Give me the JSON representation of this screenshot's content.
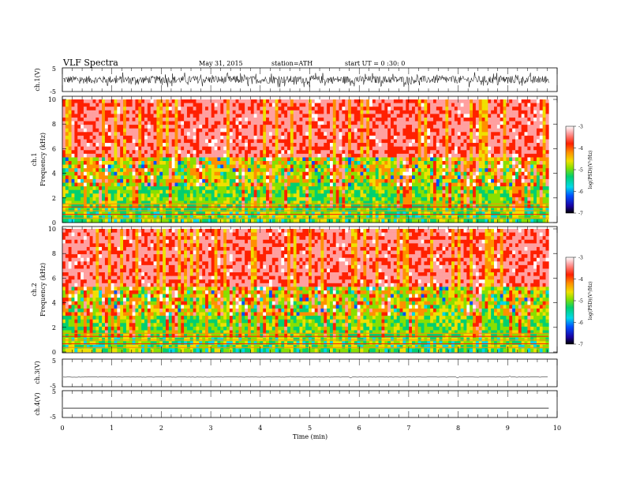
{
  "header": {
    "title": "VLF Spectra",
    "date": "May 31, 2015",
    "station": "station=ATH",
    "start": "start UT =   0 :30: 0"
  },
  "colorbar": {
    "label": "log(PSD)(V^2/Hz)",
    "ticks": [
      "-3",
      "-4",
      "-5",
      "-6",
      "-7"
    ],
    "colors": [
      "#000000",
      "#1a00a0",
      "#0050ff",
      "#00d8e8",
      "#00d070",
      "#88e000",
      "#f0e000",
      "#ff9000",
      "#ff2000",
      "#ffa0a0",
      "#ffffff"
    ]
  },
  "chart_data": [
    {
      "type": "line",
      "panel": "ch1-waveform",
      "ylabel": "ch.1(V)",
      "yticks": [
        "5",
        "-5"
      ],
      "ylim": [
        -5,
        5
      ],
      "xlim": [
        0,
        9.83
      ],
      "description_of_signal": "noisy waveform, amplitude approx ±3 V",
      "series": [
        {
          "values_summary": {
            "min": -3.3,
            "max": 3.0,
            "mean": 0
          }
        }
      ]
    },
    {
      "type": "heatmap",
      "panel": "ch1-spectrogram",
      "ylabel": "ch.1\nFrequency (kHz)",
      "yticks": [
        "0",
        "2",
        "4",
        "6",
        "8",
        "10"
      ],
      "ylim": [
        0,
        10
      ],
      "xlim": [
        0,
        9.83
      ],
      "value_range": [
        -7,
        -3
      ]
    },
    {
      "type": "heatmap",
      "panel": "ch2-spectrogram",
      "ylabel": "ch.2\nFrequency (kHz)",
      "yticks": [
        "0",
        "2",
        "4",
        "6",
        "8",
        "10"
      ],
      "ylim": [
        0,
        10
      ],
      "xlim": [
        0,
        9.83
      ],
      "value_range": [
        -7,
        -3
      ]
    },
    {
      "type": "line",
      "panel": "ch3-waveform",
      "ylabel": "ch.3(V)",
      "yticks": [
        "5",
        "-5"
      ],
      "ylim": [
        -5,
        5
      ],
      "xlim": [
        0,
        9.83
      ],
      "series": [
        {
          "values_summary": {
            "level": -1.5
          }
        }
      ]
    },
    {
      "type": "line",
      "panel": "ch4-waveform",
      "ylabel": "ch.4(V)",
      "yticks": [
        "5",
        "-5"
      ],
      "ylim": [
        -5,
        5
      ],
      "xlim": [
        0,
        9.83
      ],
      "series": [
        {
          "values_summary": {
            "level": -1.5
          }
        }
      ]
    }
  ],
  "xaxis": {
    "label": "Time (min)",
    "ticks": [
      "0",
      "1",
      "2",
      "3",
      "4",
      "5",
      "6",
      "7",
      "8",
      "9",
      "10"
    ],
    "xlim": [
      0,
      10
    ]
  }
}
